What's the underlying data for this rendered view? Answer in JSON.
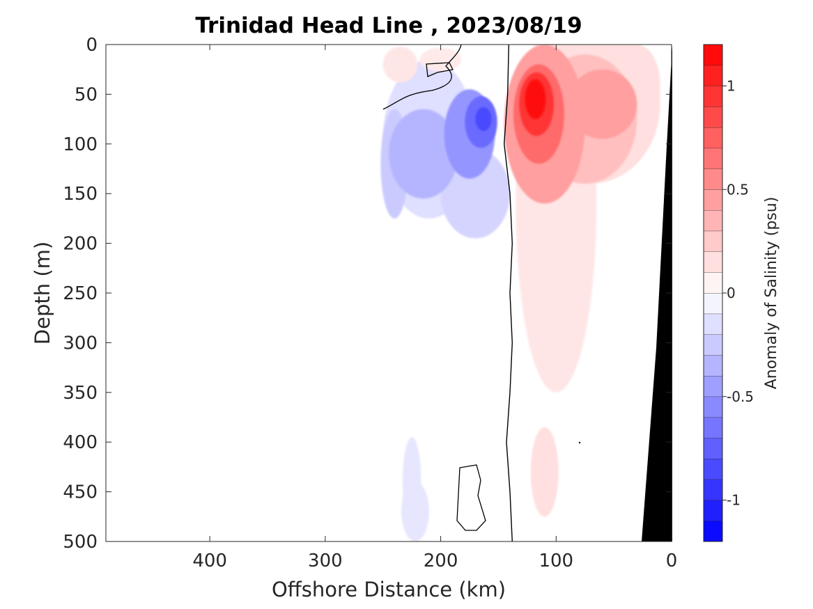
{
  "chart_data": {
    "type": "heatmap",
    "title": "Trinidad Head Line , 2023/08/19",
    "xlabel": "Offshore Distance (km)",
    "ylabel": "Depth (m)",
    "xlim": [
      490,
      0
    ],
    "ylim": [
      0,
      500
    ],
    "x_reversed": true,
    "y_reversed": true,
    "xticks": [
      400,
      300,
      200,
      100,
      0
    ],
    "yticks": [
      0,
      50,
      100,
      150,
      200,
      250,
      300,
      350,
      400,
      450,
      500
    ],
    "colorbar": {
      "label": "Anomaly of Salinity (psu)",
      "range": [
        -1.2,
        1.2
      ],
      "step": 0.1,
      "ticks": [
        -1,
        -0.5,
        0,
        0.5,
        1
      ],
      "tick_labels": [
        "-1",
        "-0.5",
        "0",
        "0.5",
        "1"
      ],
      "min_color": "#0000ff",
      "mid_color": "#ffffff",
      "max_color": "#ff0000"
    },
    "data_extent_x": [
      0,
      250
    ],
    "features": [
      {
        "name": "subsurface low-salinity core",
        "x": 165,
        "depth": 75,
        "anomaly": -0.8
      },
      {
        "name": "subsurface high-salinity core",
        "x": 115,
        "depth": 60,
        "anomaly": 1.2
      },
      {
        "name": "shallow low-salinity patch",
        "x": 225,
        "depth": 470,
        "anomaly": -0.15
      },
      {
        "name": "deep high-salinity patch",
        "x": 110,
        "depth": 430,
        "anomaly": 0.15
      }
    ],
    "zero_contour": [
      [
        138,
        500
      ],
      [
        140,
        450
      ],
      [
        143,
        400
      ],
      [
        140,
        350
      ],
      [
        138,
        300
      ],
      [
        140,
        250
      ],
      [
        138,
        200
      ],
      [
        140,
        150
      ],
      [
        145,
        100
      ],
      [
        142,
        50
      ],
      [
        141,
        0
      ]
    ],
    "bathymetry_color": "#000000"
  }
}
